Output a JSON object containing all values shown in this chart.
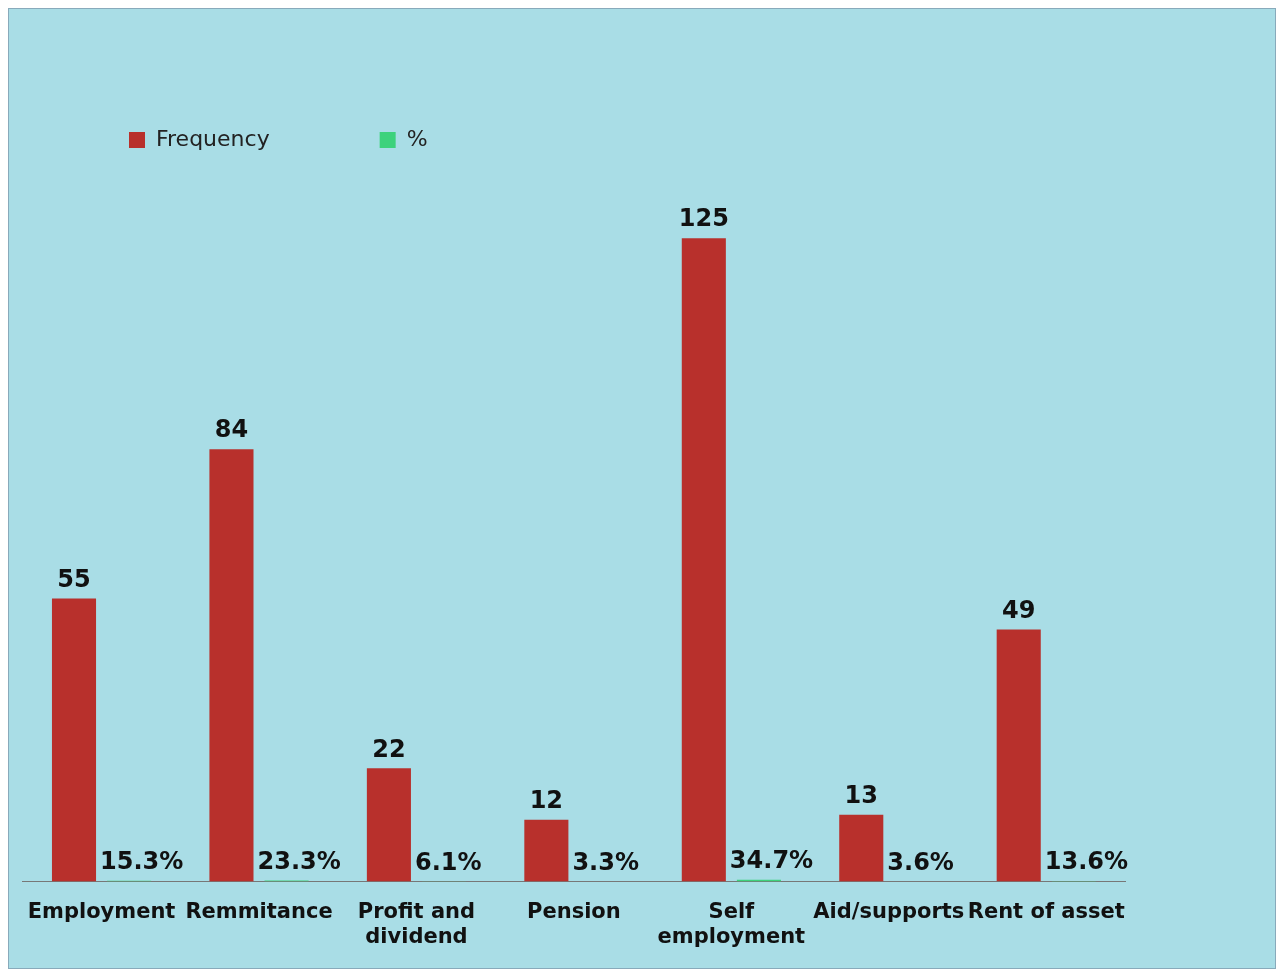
{
  "chart_data": {
    "type": "bar",
    "categories": [
      "Employment",
      "Remmitance",
      "Profit and dividend",
      "Pension",
      "Self employment",
      "Aid/supports",
      "Rent of asset"
    ],
    "series": [
      {
        "name": "Frequency",
        "color": "#b8302c",
        "values": [
          55,
          84,
          22,
          12,
          125,
          13,
          49
        ],
        "value_labels": [
          "55",
          "84",
          "22",
          "12",
          "125",
          "13",
          "49"
        ]
      },
      {
        "name": "%",
        "color": "#3dd27c",
        "values": [
          0.153,
          0.233,
          0.061,
          0.033,
          0.347,
          0.036,
          0.136
        ],
        "value_labels": [
          "15.3%",
          "23.3%",
          "6.1%",
          "3.3%",
          "34.7%",
          "3.6%",
          "13.6%"
        ]
      }
    ],
    "legend": "top left",
    "grid": false
  }
}
